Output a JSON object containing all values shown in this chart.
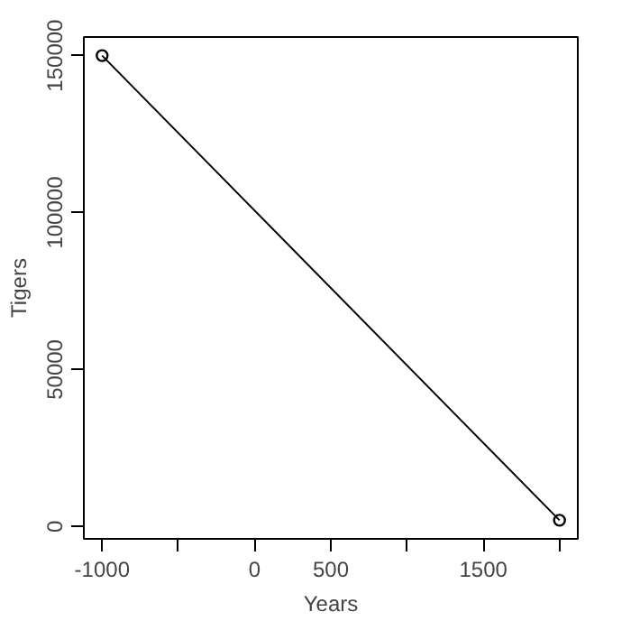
{
  "chart_data": {
    "type": "line",
    "xlabel": "Years",
    "ylabel": "Tigers",
    "x": [
      -1000,
      2000
    ],
    "series": [
      {
        "color": "#000000",
        "values": [
          150000,
          2000
        ]
      }
    ],
    "xlim": [
      -1120,
      2120
    ],
    "ylim": [
      -3920,
      155920
    ],
    "xticks": [
      -1000,
      {
        "value": -500,
        "label": null
      },
      0,
      500,
      {
        "value": 1000,
        "label": null
      },
      1500,
      {
        "value": 2000,
        "label": null
      }
    ],
    "yticks": [
      0,
      50000,
      100000,
      150000
    ],
    "marker": "circle",
    "line_style": "solid"
  }
}
